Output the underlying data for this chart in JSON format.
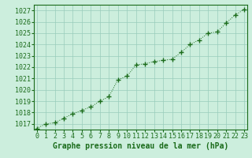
{
  "x": [
    0,
    1,
    2,
    3,
    4,
    5,
    6,
    7,
    8,
    9,
    10,
    11,
    12,
    13,
    14,
    15,
    16,
    17,
    18,
    19,
    20,
    21,
    22,
    23
  ],
  "y": [
    1016.6,
    1017.0,
    1017.1,
    1017.5,
    1017.9,
    1018.2,
    1018.5,
    1019.0,
    1019.4,
    1020.9,
    1021.2,
    1022.2,
    1022.3,
    1022.5,
    1022.6,
    1022.7,
    1023.3,
    1024.0,
    1024.4,
    1025.0,
    1025.1,
    1025.9,
    1026.6,
    1027.1
  ],
  "line_color": "#1a6b1a",
  "marker_color": "#1a6b1a",
  "bg_color": "#cceedd",
  "grid_color": "#99ccbb",
  "xlabel": "Graphe pression niveau de la mer (hPa)",
  "ylim": [
    1016.5,
    1027.5
  ],
  "yticks": [
    1017,
    1018,
    1019,
    1020,
    1021,
    1022,
    1023,
    1024,
    1025,
    1026,
    1027
  ],
  "xticks": [
    0,
    1,
    2,
    3,
    4,
    5,
    6,
    7,
    8,
    9,
    10,
    11,
    12,
    13,
    14,
    15,
    16,
    17,
    18,
    19,
    20,
    21,
    22,
    23
  ],
  "xlim": [
    -0.3,
    23.3
  ],
  "xlabel_fontsize": 7.0,
  "tick_fontsize": 6.0,
  "figsize": [
    3.2,
    2.0
  ],
  "dpi": 100
}
